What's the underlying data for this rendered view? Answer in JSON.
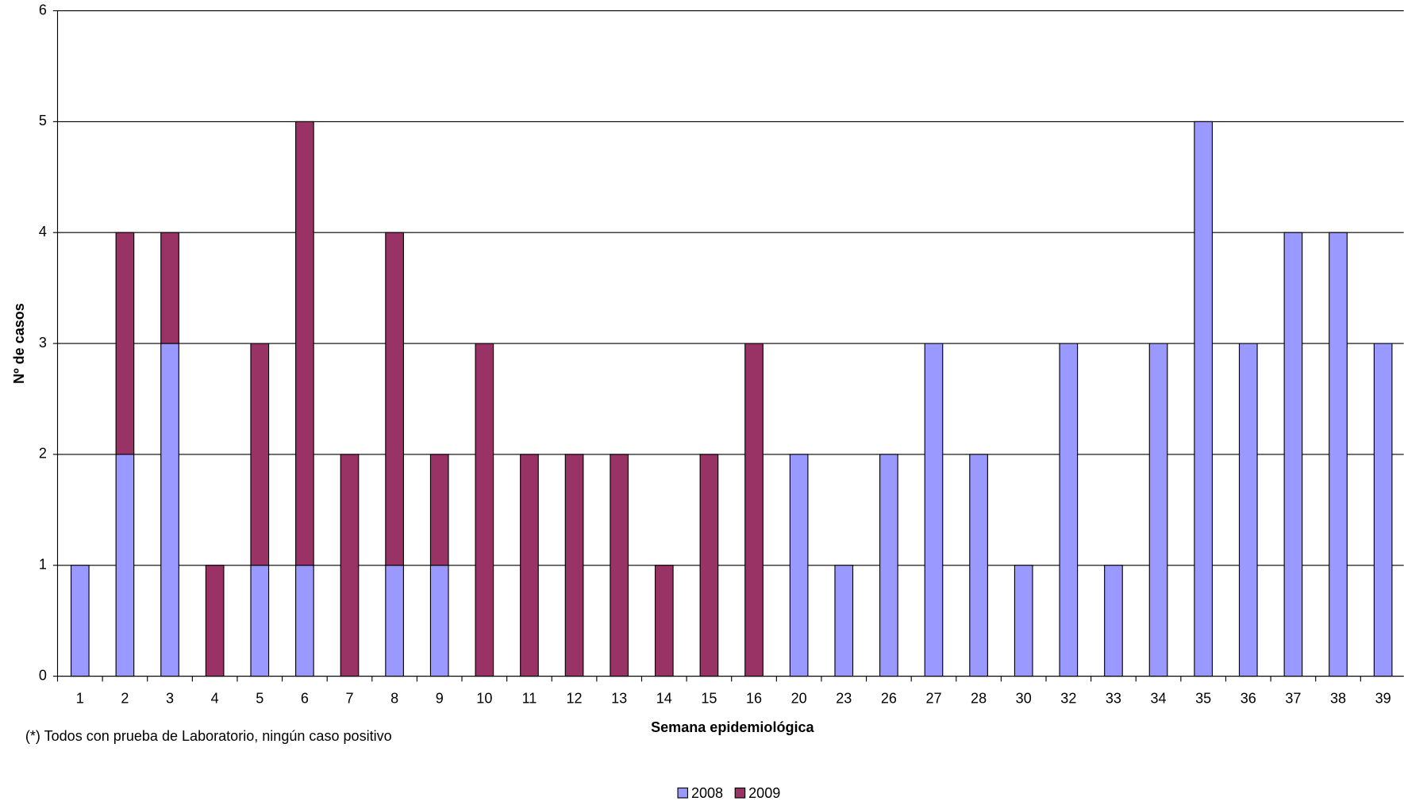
{
  "chart_data": {
    "type": "stacked_bar",
    "x_label": "Semana epidemiológica",
    "y_label": "Nº de casos",
    "note": "(*) Todos con prueba de Laboratorio, ningún caso positivo",
    "categories": [
      "1",
      "2",
      "3",
      "4",
      "5",
      "6",
      "7",
      "8",
      "9",
      "10",
      "11",
      "12",
      "13",
      "14",
      "15",
      "16",
      "20",
      "23",
      "26",
      "27",
      "28",
      "30",
      "32",
      "33",
      "34",
      "35",
      "36",
      "37",
      "38",
      "39"
    ],
    "series": [
      {
        "name": "2008",
        "color": "#9999ff",
        "values": [
          1,
          2,
          3,
          0,
          1,
          1,
          0,
          1,
          1,
          0,
          0,
          0,
          0,
          0,
          0,
          0,
          2,
          1,
          2,
          3,
          2,
          1,
          3,
          1,
          3,
          5,
          3,
          4,
          4,
          3
        ]
      },
      {
        "name": "2009",
        "color": "#993366",
        "values": [
          0,
          2,
          1,
          1,
          2,
          4,
          2,
          3,
          1,
          3,
          2,
          2,
          2,
          1,
          2,
          3,
          0,
          0,
          0,
          0,
          0,
          0,
          0,
          0,
          0,
          0,
          0,
          0,
          0,
          0
        ]
      }
    ],
    "ylim": [
      0,
      6
    ],
    "yticks": [
      0,
      1,
      2,
      3,
      4,
      5,
      6
    ],
    "grid": true,
    "legend": "bottom"
  }
}
